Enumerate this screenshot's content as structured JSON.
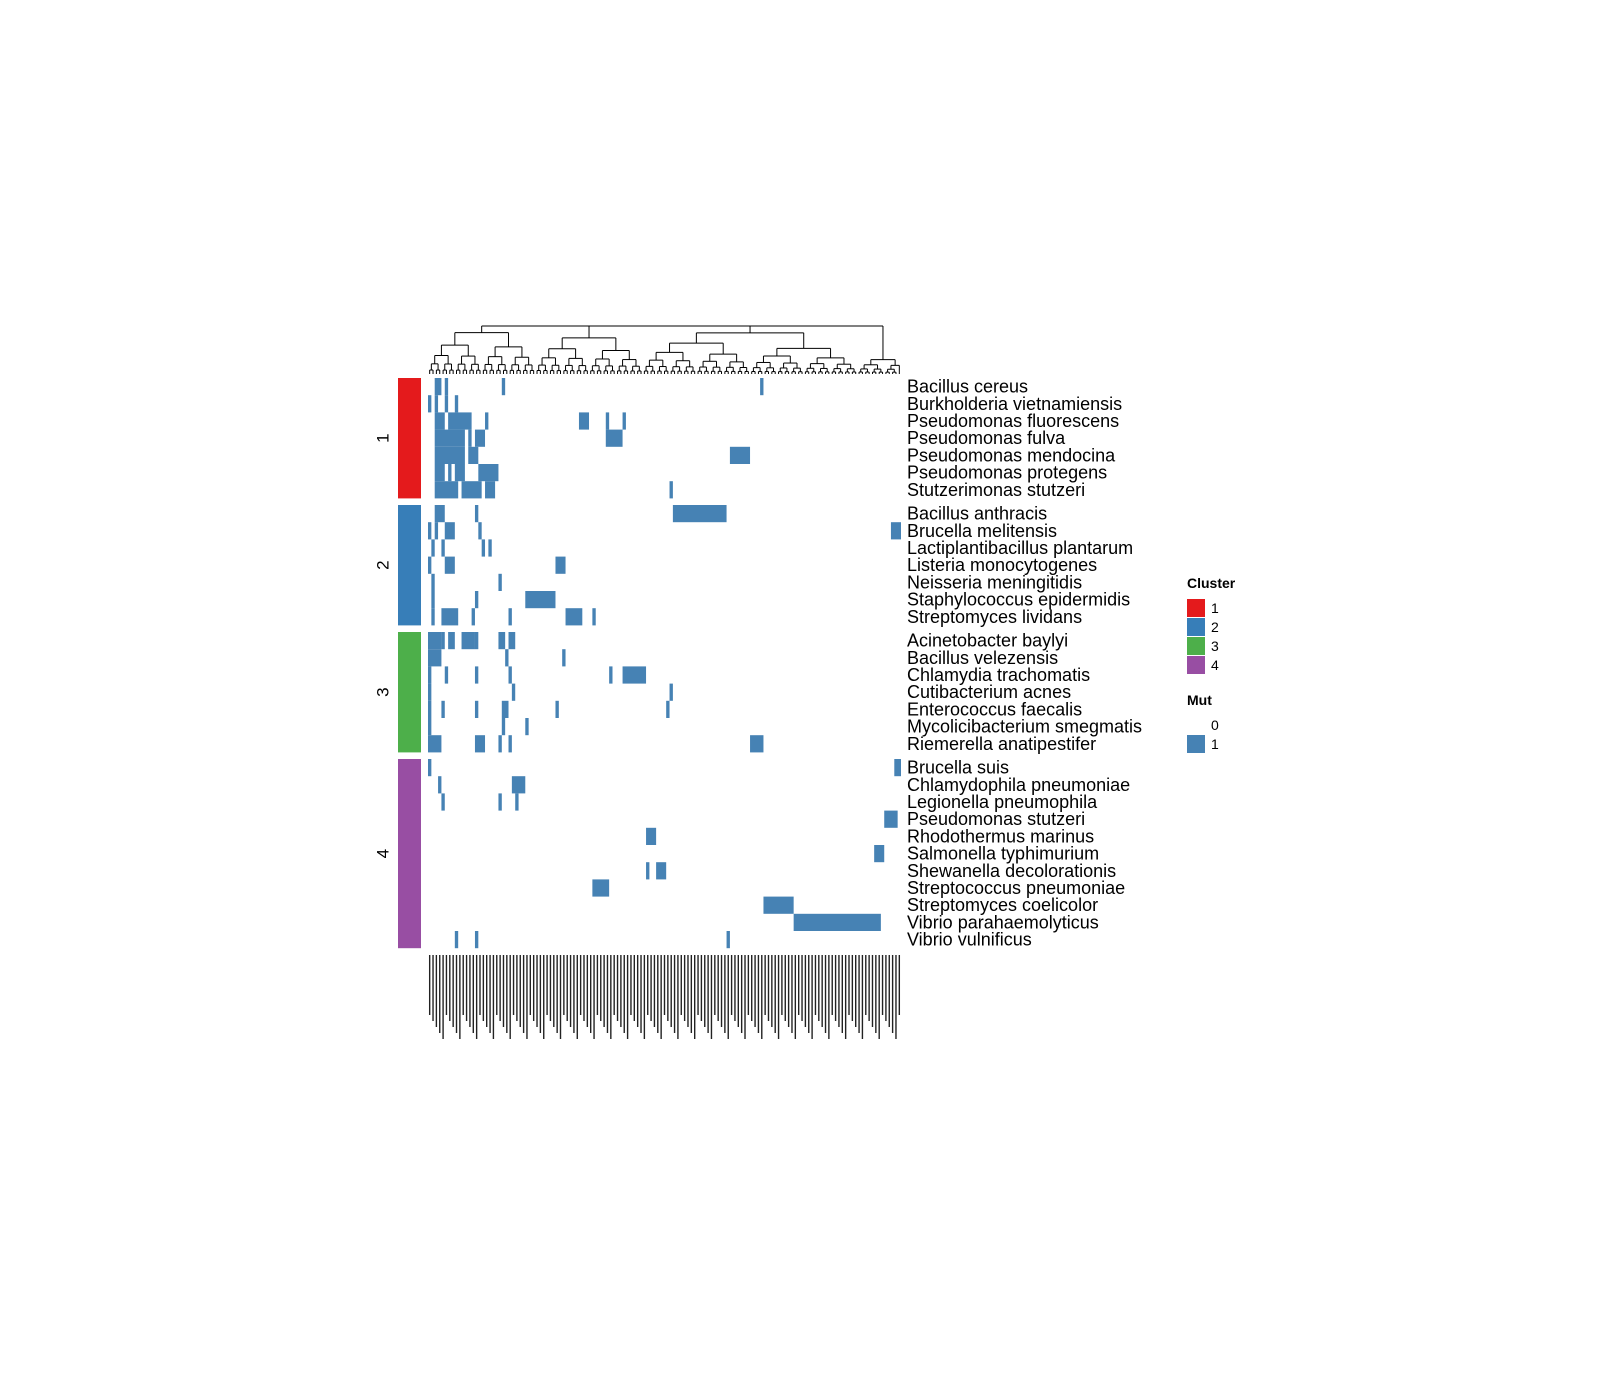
{
  "chart_data": {
    "type": "heatmap",
    "title": "",
    "xlabel": "",
    "ylabel": "",
    "colors": {
      "cluster": {
        "1": "#E41A1C",
        "2": "#377EB8",
        "3": "#4DAF4A",
        "4": "#984EA3"
      },
      "mut": {
        "0": "#FFFFFF",
        "1": "#4682B4"
      },
      "dendrogram": "#000000"
    },
    "n_columns": 141,
    "column_labels_note": "141 mutation column labels are printed rotated and overlapping; they are not legible in the image",
    "row_groups": [
      {
        "cluster": "1",
        "rows": [
          {
            "name": "Bacillus cereus",
            "mut_columns": [
              [
                2,
                3
              ],
              [
                5,
                5
              ],
              [
                22,
                22
              ],
              [
                99,
                99
              ]
            ]
          },
          {
            "name": "Burkholderia vietnamiensis",
            "mut_columns": [
              [
                0,
                0
              ],
              [
                2,
                2
              ],
              [
                5,
                5
              ],
              [
                8,
                8
              ]
            ]
          },
          {
            "name": "Pseudomonas fluorescens",
            "mut_columns": [
              [
                2,
                4
              ],
              [
                6,
                12
              ],
              [
                17,
                17
              ],
              [
                45,
                47
              ],
              [
                53,
                53
              ],
              [
                58,
                58
              ]
            ]
          },
          {
            "name": "Pseudomonas fulva",
            "mut_columns": [
              [
                2,
                10
              ],
              [
                12,
                12
              ],
              [
                14,
                16
              ],
              [
                53,
                57
              ]
            ]
          },
          {
            "name": "Pseudomonas mendocina",
            "mut_columns": [
              [
                2,
                10
              ],
              [
                12,
                14
              ],
              [
                90,
                95
              ]
            ]
          },
          {
            "name": "Pseudomonas protegens",
            "mut_columns": [
              [
                2,
                4
              ],
              [
                6,
                6
              ],
              [
                8,
                10
              ],
              [
                15,
                20
              ]
            ]
          },
          {
            "name": "Stutzerimonas stutzeri",
            "mut_columns": [
              [
                2,
                8
              ],
              [
                10,
                15
              ],
              [
                17,
                19
              ],
              [
                72,
                72
              ]
            ]
          }
        ]
      },
      {
        "cluster": "2",
        "rows": [
          {
            "name": "Bacillus anthracis",
            "mut_columns": [
              [
                2,
                4
              ],
              [
                14,
                14
              ],
              [
                73,
                88
              ]
            ]
          },
          {
            "name": "Brucella melitensis",
            "mut_columns": [
              [
                0,
                0
              ],
              [
                2,
                2
              ],
              [
                5,
                7
              ],
              [
                15,
                15
              ],
              [
                138,
                140
              ]
            ]
          },
          {
            "name": "Lactiplantibacillus plantarum",
            "mut_columns": [
              [
                1,
                1
              ],
              [
                4,
                4
              ],
              [
                16,
                16
              ],
              [
                18,
                18
              ]
            ]
          },
          {
            "name": "Listeria monocytogenes",
            "mut_columns": [
              [
                0,
                0
              ],
              [
                5,
                7
              ],
              [
                38,
                40
              ]
            ]
          },
          {
            "name": "Neisseria meningitidis",
            "mut_columns": [
              [
                1,
                1
              ],
              [
                21,
                21
              ]
            ]
          },
          {
            "name": "Staphylococcus epidermidis",
            "mut_columns": [
              [
                1,
                1
              ],
              [
                14,
                14
              ],
              [
                29,
                37
              ]
            ]
          },
          {
            "name": "Streptomyces lividans",
            "mut_columns": [
              [
                1,
                1
              ],
              [
                4,
                8
              ],
              [
                13,
                13
              ],
              [
                24,
                24
              ],
              [
                41,
                45
              ],
              [
                49,
                49
              ]
            ]
          }
        ]
      },
      {
        "cluster": "3",
        "rows": [
          {
            "name": "Acinetobacter baylyi",
            "mut_columns": [
              [
                0,
                3
              ],
              [
                4,
                4
              ],
              [
                6,
                7
              ],
              [
                10,
                13
              ],
              [
                14,
                14
              ],
              [
                21,
                22
              ],
              [
                24,
                25
              ]
            ]
          },
          {
            "name": "Bacillus velezensis",
            "mut_columns": [
              [
                0,
                3
              ],
              [
                23,
                23
              ],
              [
                40,
                40
              ]
            ]
          },
          {
            "name": "Chlamydia trachomatis",
            "mut_columns": [
              [
                0,
                0
              ],
              [
                5,
                5
              ],
              [
                14,
                14
              ],
              [
                24,
                24
              ],
              [
                54,
                54
              ],
              [
                58,
                64
              ]
            ]
          },
          {
            "name": "Cutibacterium acnes",
            "mut_columns": [
              [
                0,
                0
              ],
              [
                25,
                25
              ],
              [
                72,
                72
              ]
            ]
          },
          {
            "name": "Enterococcus faecalis",
            "mut_columns": [
              [
                0,
                0
              ],
              [
                4,
                4
              ],
              [
                14,
                14
              ],
              [
                22,
                23
              ],
              [
                38,
                38
              ],
              [
                71,
                71
              ]
            ]
          },
          {
            "name": "Mycolicibacterium smegmatis",
            "mut_columns": [
              [
                0,
                0
              ],
              [
                22,
                22
              ],
              [
                29,
                29
              ]
            ]
          },
          {
            "name": "Riemerella anatipestifer",
            "mut_columns": [
              [
                0,
                3
              ],
              [
                14,
                16
              ],
              [
                21,
                21
              ],
              [
                24,
                24
              ],
              [
                96,
                99
              ]
            ]
          }
        ]
      },
      {
        "cluster": "4",
        "rows": [
          {
            "name": "Brucella suis",
            "mut_columns": [
              [
                0,
                0
              ],
              [
                139,
                140
              ]
            ]
          },
          {
            "name": "Chlamydophila pneumoniae",
            "mut_columns": [
              [
                3,
                3
              ],
              [
                25,
                28
              ]
            ]
          },
          {
            "name": "Legionella pneumophila",
            "mut_columns": [
              [
                4,
                4
              ],
              [
                21,
                21
              ],
              [
                26,
                26
              ]
            ]
          },
          {
            "name": "Pseudomonas stutzeri",
            "mut_columns": [
              [
                136,
                139
              ]
            ]
          },
          {
            "name": "Rhodothermus marinus",
            "mut_columns": [
              [
                65,
                67
              ]
            ]
          },
          {
            "name": "Salmonella typhimurium",
            "mut_columns": [
              [
                133,
                135
              ]
            ]
          },
          {
            "name": "Shewanella decolorationis",
            "mut_columns": [
              [
                65,
                65
              ],
              [
                68,
                70
              ]
            ]
          },
          {
            "name": "Streptococcus pneumoniae",
            "mut_columns": [
              [
                49,
                53
              ]
            ]
          },
          {
            "name": "Streptomyces coelicolor",
            "mut_columns": [
              [
                100,
                108
              ]
            ]
          },
          {
            "name": "Vibrio parahaemolyticus",
            "mut_columns": [
              [
                109,
                134
              ]
            ]
          },
          {
            "name": "Vibrio vulnificus",
            "mut_columns": [
              [
                8,
                8
              ],
              [
                14,
                14
              ],
              [
                89,
                89
              ]
            ]
          }
        ]
      }
    ],
    "legend": {
      "placement": "right",
      "cluster": {
        "title": "Cluster",
        "entries": [
          "1",
          "2",
          "3",
          "4"
        ]
      },
      "mut": {
        "title": "Mut",
        "entries": [
          "0",
          "1"
        ]
      }
    }
  }
}
